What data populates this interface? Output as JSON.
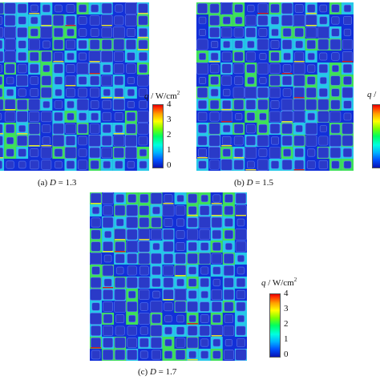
{
  "panels": [
    {
      "id": "a",
      "caption_prefix": "(a) ",
      "caption_var": "D",
      "caption_value": " = 1.3"
    },
    {
      "id": "b",
      "caption_prefix": "(b) ",
      "caption_var": "D",
      "caption_value": " = 1.5"
    },
    {
      "id": "c",
      "caption_prefix": "(c) ",
      "caption_var": "D",
      "caption_value": " = 1.7"
    }
  ],
  "colorbar": {
    "var": "q",
    "unit": " / W/cm",
    "unit_exp": "2",
    "ticks": [
      "4",
      "3",
      "2",
      "1",
      "0"
    ]
  },
  "colors": {
    "background": "#2a3ac8",
    "low": "#1230d8",
    "mid": "#25c8e8",
    "high_green": "#3ee05a",
    "high_yellow": "#e6e02a",
    "peak_red": "#d02020"
  }
}
